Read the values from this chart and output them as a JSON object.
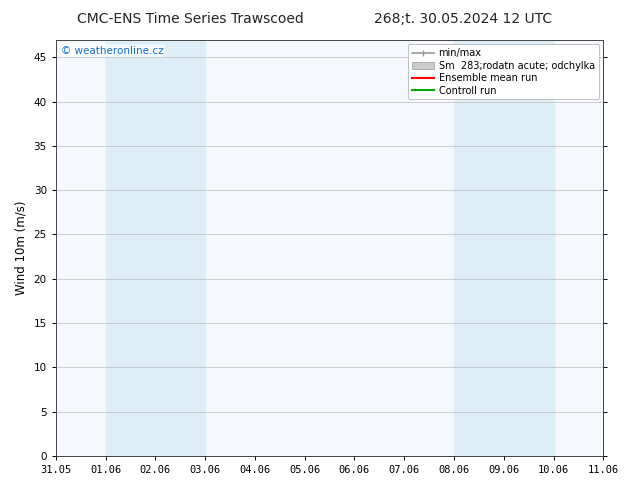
{
  "title_left": "CMC-ENS Time Series Trawscoed",
  "title_right": "268;t. 30.05.2024 12 UTC",
  "ylabel": "Wind 10m (m/s)",
  "watermark": "© weatheronline.cz",
  "xtick_labels": [
    "31.05",
    "01.06",
    "02.06",
    "03.06",
    "04.06",
    "05.06",
    "06.06",
    "07.06",
    "08.06",
    "09.06",
    "10.06",
    "11.06"
  ],
  "ytick_values": [
    0,
    5,
    10,
    15,
    20,
    25,
    30,
    35,
    40,
    45
  ],
  "ylim": [
    0,
    47
  ],
  "xlim": [
    0,
    11
  ],
  "shaded_bands": [
    {
      "x_start": 1,
      "x_end": 3,
      "color": "#ddeef9"
    },
    {
      "x_start": 8,
      "x_end": 10,
      "color": "#ddeef9"
    }
  ],
  "background_color": "#ffffff",
  "plot_bg_color": "#f5f9fe",
  "grid_color": "#bbbbbb",
  "title_fontsize": 10,
  "tick_fontsize": 7.5,
  "ylabel_fontsize": 8.5,
  "legend_fontsize": 7,
  "watermark_color": "#1a6fc4",
  "watermark_fontsize": 7.5,
  "legend_label_minmax": "min/max",
  "legend_label_sm": "Sm  283;rodatn acute; odchylka",
  "legend_label_ensemble": "Ensemble mean run",
  "legend_label_control": "Controll run",
  "minmax_color": "#999999",
  "sm_color": "#cccccc",
  "ensemble_color": "#ff0000",
  "control_color": "#00aa00"
}
